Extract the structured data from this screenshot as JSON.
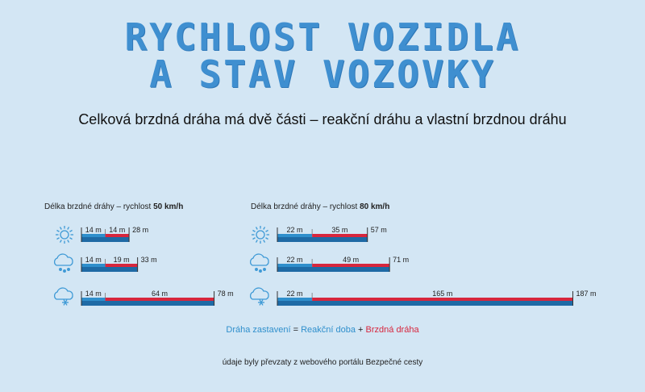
{
  "header": {
    "title_line1": "RYCHLOST VOZIDLA",
    "title_line2": "A STAV VOZOVKY",
    "subtitle": "Celková brzdná dráha má dvě části – reakční dráhu a vlastní brzdnou dráhu"
  },
  "colors": {
    "reaction": "#2f8fcc",
    "braking": "#d7263d",
    "base": "#1e6aa5",
    "icon": "#3f9ad6"
  },
  "chart_data": [
    {
      "type": "bar",
      "title_prefix": "Délka brzdné dráhy – rychlost",
      "title_speed": "50 km/h",
      "categories": [
        "sun-icon",
        "rain-cloud-icon",
        "snow-cloud-icon"
      ],
      "series": [
        {
          "name": "Reakční doba",
          "values": [
            14,
            14,
            14
          ]
        },
        {
          "name": "Brzdná dráha",
          "values": [
            14,
            19,
            64
          ]
        }
      ],
      "reaction_labels": [
        "14 m",
        "14 m",
        "14 m"
      ],
      "braking_labels": [
        "14 m",
        "19 m",
        "64 m"
      ],
      "total_labels": [
        "28 m",
        "33 m",
        "78 m"
      ]
    },
    {
      "type": "bar",
      "title_prefix": "Délka brzdné dráhy – rychlost",
      "title_speed": "80 km/h",
      "categories": [
        "sun-icon",
        "rain-cloud-icon",
        "snow-cloud-icon"
      ],
      "series": [
        {
          "name": "Reakční doba",
          "values": [
            22,
            22,
            22
          ]
        },
        {
          "name": "Brzdná dráha",
          "values": [
            35,
            49,
            165
          ]
        }
      ],
      "reaction_labels": [
        "22 m",
        "22 m",
        "22 m"
      ],
      "braking_labels": [
        "35 m",
        "49 m",
        "165 m"
      ],
      "total_labels": [
        "57 m",
        "71 m",
        "187 m"
      ]
    }
  ],
  "legend": {
    "total": "Dráha zastavení",
    "eq": "=",
    "reaction": "Reakční doba",
    "plus": "+",
    "braking": "Brzdná dráha"
  },
  "source": "údaje byly převzaty z webového portálu Bezpečné cesty"
}
